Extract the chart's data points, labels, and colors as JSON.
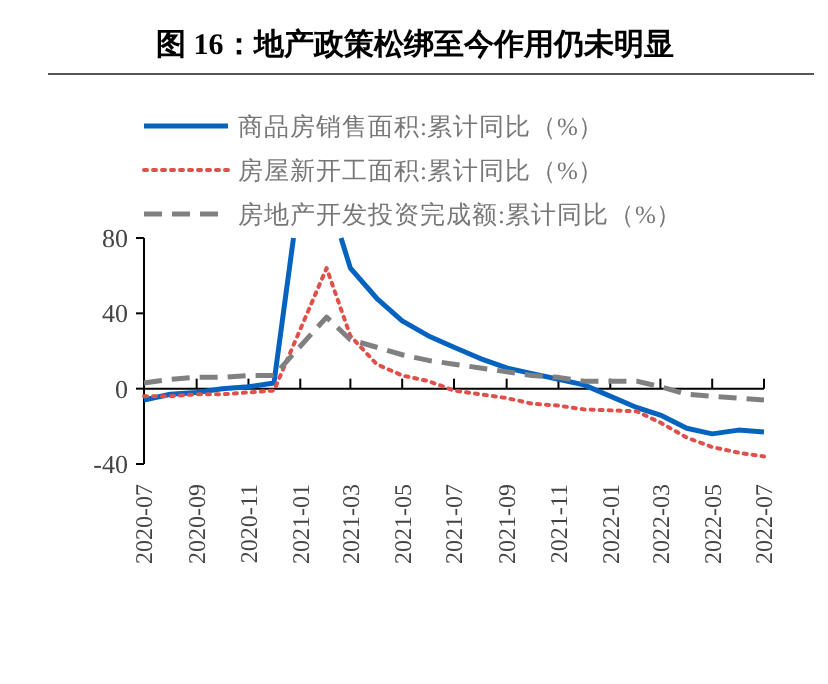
{
  "chart_data": {
    "type": "line",
    "title": "图 16：地产政策松绑至今作用仍未明显",
    "ylim": [
      -40,
      80
    ],
    "yticks": [
      -40,
      0,
      40,
      80
    ],
    "xlim": [
      "2020-07",
      "2022-07"
    ],
    "xticks": [
      "2020-07",
      "2020-09",
      "2020-11",
      "2021-01",
      "2021-03",
      "2021-05",
      "2021-07",
      "2021-09",
      "2021-11",
      "2022-01",
      "2022-03",
      "2022-05",
      "2022-07"
    ],
    "legend": "top",
    "series": [
      {
        "name": "商品房销售面积:累计同比（%）",
        "color": "#0563c0",
        "line_style": "solid",
        "x": [
          "2020-07",
          "2020-08",
          "2020-09",
          "2020-10",
          "2020-11",
          "2020-12",
          "2020-12-24",
          "2021-01-15",
          "2021-02-18",
          "2021-03",
          "2021-04",
          "2021-05",
          "2021-06",
          "2021-07",
          "2021-08",
          "2021-09",
          "2021-10",
          "2021-11",
          "2021-12",
          "2022-02",
          "2022-03",
          "2022-04",
          "2022-05",
          "2022-06",
          "2022-07"
        ],
        "values": [
          -6,
          -3,
          -2,
          0,
          1,
          3,
          80,
          null,
          80,
          64,
          48,
          36,
          28,
          22,
          16,
          11,
          8,
          5,
          2,
          -10,
          -14,
          -21,
          -24,
          -22,
          -23
        ]
      },
      {
        "name": "房屋新开工面积:累计同比（%）",
        "color": "#e0504a",
        "line_style": "dotted",
        "x": [
          "2020-07",
          "2020-08",
          "2020-09",
          "2020-10",
          "2020-11",
          "2020-12",
          "2021-02",
          "2021-03",
          "2021-04",
          "2021-05",
          "2021-06",
          "2021-07",
          "2021-08",
          "2021-09",
          "2021-10",
          "2021-11",
          "2021-12",
          "2022-02",
          "2022-03",
          "2022-04",
          "2022-05",
          "2022-06",
          "2022-07"
        ],
        "values": [
          -4,
          -4,
          -3,
          -3,
          -2,
          -1,
          64,
          28,
          13,
          7,
          4,
          -1,
          -3,
          -5,
          -8,
          -9,
          -11,
          -12,
          -18,
          -26,
          -31,
          -34,
          -36
        ]
      },
      {
        "name": "房地产开发投资完成额:累计同比（%）",
        "color": "#808080",
        "line_style": "dashed",
        "x": [
          "2020-07",
          "2020-08",
          "2020-09",
          "2020-10",
          "2020-11",
          "2020-12",
          "2021-02",
          "2021-03",
          "2021-04",
          "2021-05",
          "2021-06",
          "2021-07",
          "2021-08",
          "2021-09",
          "2021-10",
          "2021-11",
          "2021-12",
          "2022-02",
          "2022-03",
          "2022-04",
          "2022-05",
          "2022-06",
          "2022-07"
        ],
        "values": [
          3,
          5,
          6,
          6,
          7,
          7,
          38,
          26,
          22,
          18,
          15,
          13,
          11,
          9,
          7,
          6,
          4,
          4,
          1,
          -3,
          -4,
          -5,
          -6
        ]
      }
    ]
  }
}
